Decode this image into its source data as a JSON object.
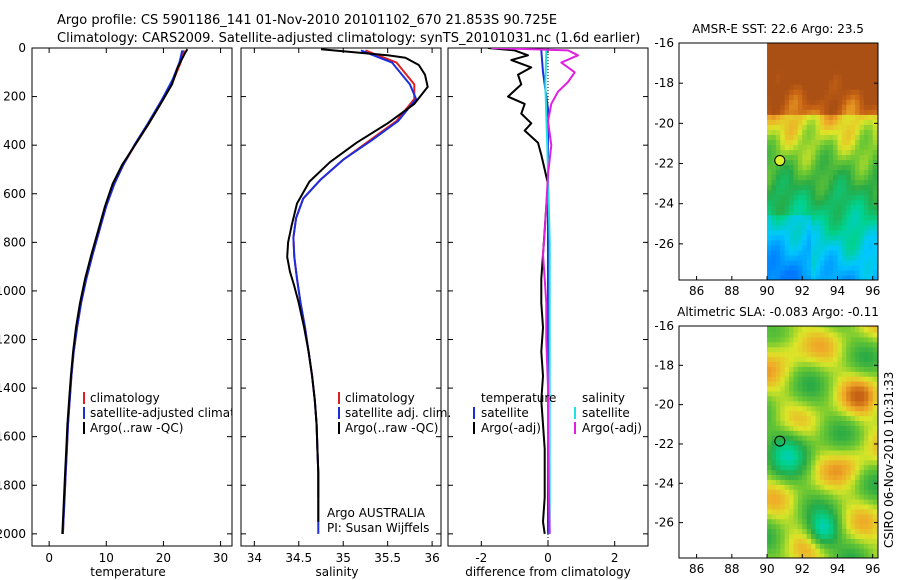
{
  "header": {
    "line1": "Argo profile: CS 5901186_141 01-Nov-2010 20101102_670 21.853S 90.725E",
    "line2": "Climatology: CARS2009. Satellite-adjusted climatology: synTS_20101031.nc (1.6d earlier)"
  },
  "footer": {
    "stamp": "CSIRO 06-Nov-2010 10:31:33",
    "agency": "Argo AUSTRALIA",
    "pi": "PI: Susan Wijffels"
  },
  "colors": {
    "climatology": "#e02020",
    "satellite": "#1a2ee0",
    "argo": "#000000",
    "salt_satellite": "#20e0e0",
    "salt_argo": "#e020e0"
  },
  "chart_data": [
    {
      "type": "line",
      "title": "",
      "xlabel": "temperature",
      "ylabel": "",
      "xlim": [
        -3,
        32
      ],
      "ylim": [
        2050,
        0
      ],
      "xticks": [
        0,
        10,
        20,
        30
      ],
      "yticks": [
        0,
        200,
        400,
        600,
        800,
        1000,
        1200,
        1400,
        1600,
        1800,
        2000
      ],
      "legend": [
        "climatology",
        "satellite-adjusted climatology",
        "Argo(..raw -QC)"
      ],
      "series": [
        {
          "name": "climatology",
          "color": "red",
          "points": [
            [
              23.6,
              10
            ],
            [
              23,
              60
            ],
            [
              21.8,
              130
            ],
            [
              20,
              210
            ],
            [
              17.5,
              310
            ],
            [
              15,
              400
            ],
            [
              13,
              480
            ],
            [
              11.4,
              560
            ],
            [
              10,
              650
            ],
            [
              8.8,
              750
            ],
            [
              7.6,
              850
            ],
            [
              6.5,
              950
            ],
            [
              5.6,
              1050
            ],
            [
              4.9,
              1150
            ],
            [
              4.3,
              1250
            ],
            [
              3.9,
              1350
            ],
            [
              3.6,
              1450
            ],
            [
              3.3,
              1550
            ],
            [
              3.1,
              1650
            ],
            [
              2.9,
              1750
            ],
            [
              2.7,
              1850
            ],
            [
              2.5,
              1950
            ],
            [
              2.4,
              2000
            ]
          ]
        },
        {
          "name": "satellite-adjusted climatology",
          "color": "blue",
          "points": [
            [
              23.3,
              10
            ],
            [
              22.8,
              60
            ],
            [
              21.6,
              130
            ],
            [
              19.8,
              210
            ],
            [
              17.3,
              310
            ],
            [
              14.9,
              400
            ],
            [
              13,
              480
            ],
            [
              11.4,
              560
            ],
            [
              10,
              650
            ],
            [
              8.8,
              750
            ],
            [
              7.6,
              850
            ],
            [
              6.5,
              950
            ],
            [
              5.6,
              1050
            ],
            [
              4.9,
              1150
            ],
            [
              4.3,
              1250
            ],
            [
              3.9,
              1350
            ],
            [
              3.6,
              1450
            ],
            [
              3.3,
              1550
            ],
            [
              3.1,
              1650
            ],
            [
              2.9,
              1750
            ],
            [
              2.7,
              1850
            ],
            [
              2.5,
              1950
            ],
            [
              2.4,
              2000
            ]
          ]
        },
        {
          "name": "Argo(..raw -QC)",
          "color": "black",
          "points": [
            [
              24.2,
              5
            ],
            [
              23.8,
              20
            ],
            [
              22.5,
              80
            ],
            [
              21.5,
              150
            ],
            [
              19.5,
              230
            ],
            [
              17.2,
              320
            ],
            [
              15,
              400
            ],
            [
              12.8,
              480
            ],
            [
              11.1,
              560
            ],
            [
              9.8,
              650
            ],
            [
              8.6,
              750
            ],
            [
              7.4,
              850
            ],
            [
              6.3,
              950
            ],
            [
              5.4,
              1050
            ],
            [
              4.7,
              1150
            ],
            [
              4.2,
              1250
            ],
            [
              3.8,
              1350
            ],
            [
              3.5,
              1450
            ],
            [
              3.2,
              1550
            ],
            [
              3,
              1650
            ],
            [
              2.8,
              1750
            ],
            [
              2.6,
              1850
            ],
            [
              2.4,
              1950
            ],
            [
              2.3,
              2000
            ]
          ]
        }
      ]
    },
    {
      "type": "line",
      "title": "",
      "xlabel": "salinity",
      "ylabel": "",
      "xlim": [
        33.85,
        36.1
      ],
      "ylim": [
        2050,
        0
      ],
      "xticks": [
        34,
        34.5,
        35,
        35.5,
        36
      ],
      "legend": [
        "climatology",
        "satellite adj. clim.",
        "Argo(..raw -QC)"
      ],
      "series": [
        {
          "name": "climatology",
          "color": "red",
          "points": [
            [
              35.25,
              10
            ],
            [
              35.6,
              60
            ],
            [
              35.8,
              150
            ],
            [
              35.8,
              210
            ],
            [
              35.6,
              300
            ],
            [
              35.3,
              380
            ],
            [
              35,
              460
            ],
            [
              34.75,
              540
            ],
            [
              34.55,
              620
            ],
            [
              34.47,
              700
            ],
            [
              34.44,
              780
            ],
            [
              34.45,
              860
            ],
            [
              34.48,
              950
            ],
            [
              34.52,
              1050
            ],
            [
              34.57,
              1150
            ],
            [
              34.61,
              1250
            ],
            [
              34.65,
              1350
            ],
            [
              34.68,
              1450
            ],
            [
              34.7,
              1550
            ],
            [
              34.71,
              1650
            ],
            [
              34.72,
              1750
            ],
            [
              34.72,
              1850
            ]
          ]
        },
        {
          "name": "satellite adj. clim.",
          "color": "blue",
          "points": [
            [
              35.2,
              10
            ],
            [
              35.55,
              60
            ],
            [
              35.75,
              150
            ],
            [
              35.82,
              210
            ],
            [
              35.62,
              300
            ],
            [
              35.32,
              380
            ],
            [
              35,
              460
            ],
            [
              34.75,
              540
            ],
            [
              34.55,
              620
            ],
            [
              34.47,
              700
            ],
            [
              34.44,
              780
            ],
            [
              34.45,
              860
            ],
            [
              34.48,
              950
            ],
            [
              34.52,
              1050
            ],
            [
              34.57,
              1150
            ],
            [
              34.61,
              1250
            ],
            [
              34.65,
              1350
            ],
            [
              34.68,
              1450
            ],
            [
              34.7,
              1550
            ],
            [
              34.71,
              1650
            ],
            [
              34.72,
              1750
            ],
            [
              34.72,
              1850
            ],
            [
              34.72,
              2000
            ]
          ]
        },
        {
          "name": "Argo(..raw -QC)",
          "color": "black",
          "points": [
            [
              34.75,
              5
            ],
            [
              35.2,
              20
            ],
            [
              35.5,
              30
            ],
            [
              35.7,
              40
            ],
            [
              35.85,
              70
            ],
            [
              35.92,
              110
            ],
            [
              35.95,
              160
            ],
            [
              35.8,
              230
            ],
            [
              35.5,
              310
            ],
            [
              35.15,
              390
            ],
            [
              34.85,
              470
            ],
            [
              34.62,
              550
            ],
            [
              34.48,
              640
            ],
            [
              34.42,
              730
            ],
            [
              34.38,
              800
            ],
            [
              34.37,
              860
            ],
            [
              34.4,
              920
            ],
            [
              34.45,
              980
            ],
            [
              34.5,
              1050
            ],
            [
              34.56,
              1150
            ],
            [
              34.61,
              1250
            ],
            [
              34.65,
              1350
            ],
            [
              34.68,
              1450
            ],
            [
              34.7,
              1550
            ],
            [
              34.71,
              1650
            ],
            [
              34.72,
              1750
            ],
            [
              34.72,
              1850
            ],
            [
              34.72,
              1950
            ]
          ]
        }
      ]
    },
    {
      "type": "line",
      "title": "",
      "xlabel": "difference from climatology",
      "ylabel": "",
      "xlim": [
        -3,
        3
      ],
      "ylim": [
        2050,
        0
      ],
      "xticks": [
        -2,
        0,
        2
      ],
      "legend": [
        "temperature",
        "satellite",
        "Argo(-adj)",
        "salinity",
        "satellite",
        "Argo(-adj)"
      ],
      "series": [
        {
          "name": "temperature satellite",
          "color": "blue",
          "points": [
            [
              -0.2,
              10
            ],
            [
              -0.15,
              100
            ],
            [
              0,
              250
            ],
            [
              0,
              2000
            ]
          ]
        },
        {
          "name": "temperature Argo(-adj)",
          "color": "black",
          "points": [
            [
              -1.8,
              0
            ],
            [
              -1,
              10
            ],
            [
              -0.6,
              30
            ],
            [
              -1.1,
              50
            ],
            [
              -0.5,
              80
            ],
            [
              -0.9,
              110
            ],
            [
              -0.8,
              150
            ],
            [
              -1.2,
              200
            ],
            [
              -0.7,
              230
            ],
            [
              -0.8,
              270
            ],
            [
              -0.5,
              310
            ],
            [
              -0.7,
              340
            ],
            [
              -0.3,
              390
            ],
            [
              -0.2,
              440
            ],
            [
              -0.1,
              500
            ],
            [
              0,
              560
            ],
            [
              -0.05,
              650
            ],
            [
              -0.1,
              750
            ],
            [
              -0.15,
              850
            ],
            [
              -0.2,
              950
            ],
            [
              -0.2,
              1050
            ],
            [
              -0.15,
              1150
            ],
            [
              -0.2,
              1250
            ],
            [
              -0.15,
              1350
            ],
            [
              -0.2,
              1450
            ],
            [
              -0.15,
              1550
            ],
            [
              -0.1,
              1650
            ],
            [
              -0.1,
              1750
            ],
            [
              -0.1,
              1850
            ],
            [
              -0.15,
              1950
            ],
            [
              -0.1,
              2000
            ]
          ]
        },
        {
          "name": "salinity satellite",
          "color": "cyan",
          "points": [
            [
              -0.05,
              10
            ],
            [
              -0.08,
              150
            ],
            [
              -0.02,
              400
            ],
            [
              0.05,
              800
            ],
            [
              0.05,
              2000
            ]
          ]
        },
        {
          "name": "salinity Argo(-adj)",
          "color": "magenta",
          "points": [
            [
              -1.7,
              0
            ],
            [
              0.6,
              10
            ],
            [
              0.9,
              30
            ],
            [
              0.4,
              60
            ],
            [
              0.8,
              100
            ],
            [
              0.6,
              140
            ],
            [
              0.3,
              180
            ],
            [
              0.1,
              230
            ],
            [
              0,
              300
            ],
            [
              0.1,
              400
            ],
            [
              0,
              520
            ],
            [
              -0.05,
              650
            ],
            [
              -0.1,
              760
            ],
            [
              -0.15,
              850
            ],
            [
              -0.1,
              950
            ],
            [
              -0.05,
              1050
            ],
            [
              -0.05,
              1200
            ],
            [
              0,
              1400
            ],
            [
              0,
              1600
            ],
            [
              0.02,
              1800
            ],
            [
              0.05,
              2000
            ]
          ]
        }
      ]
    },
    {
      "type": "heatmap",
      "title": "AMSR-E SST: 22.6 Argo: 23.5",
      "xlabel": "",
      "ylabel": "",
      "xlim": [
        85,
        96.3
      ],
      "ylim": [
        -27.8,
        -16
      ],
      "xticks": [
        86,
        88,
        90,
        92,
        94,
        96
      ],
      "yticks": [
        -16,
        -18,
        -20,
        -22,
        -24,
        -26
      ],
      "data_extent_lon": [
        90,
        96.3
      ],
      "marker": {
        "lon": 90.725,
        "lat": -21.853,
        "label": "Argo profile"
      }
    },
    {
      "type": "heatmap",
      "title": "Altimetric SLA: -0.083 Argo: -0.11",
      "xlabel": "",
      "ylabel": "",
      "xlim": [
        85,
        96.3
      ],
      "ylim": [
        -27.8,
        -16
      ],
      "xticks": [
        86,
        88,
        90,
        92,
        94,
        96
      ],
      "yticks": [
        -16,
        -18,
        -20,
        -22,
        -24,
        -26
      ],
      "data_extent_lon": [
        90,
        96.3
      ],
      "marker": {
        "lon": 90.725,
        "lat": -21.853,
        "label": "Argo profile"
      }
    }
  ]
}
